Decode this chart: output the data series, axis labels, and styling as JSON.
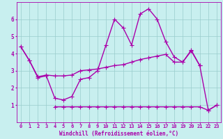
{
  "x": [
    0,
    1,
    2,
    3,
    4,
    5,
    6,
    7,
    8,
    9,
    10,
    11,
    12,
    13,
    14,
    15,
    16,
    17,
    18,
    19,
    20,
    21,
    22,
    23
  ],
  "line_spiky": [
    4.4,
    3.6,
    2.6,
    2.7,
    1.4,
    1.3,
    1.5,
    2.5,
    2.6,
    3.0,
    4.5,
    6.0,
    5.5,
    4.5,
    6.3,
    6.6,
    6.0,
    4.7,
    3.8,
    3.5,
    4.2,
    3.3,
    0.7,
    1.0
  ],
  "line_regression": [
    4.4,
    3.6,
    2.65,
    2.75,
    2.7,
    2.7,
    2.75,
    3.0,
    3.05,
    3.1,
    3.2,
    3.3,
    3.35,
    3.5,
    3.65,
    3.75,
    3.85,
    3.95,
    3.5,
    3.5,
    4.15,
    3.3,
    null,
    null
  ],
  "line_flat": [
    null,
    null,
    null,
    null,
    0.9,
    0.9,
    0.9,
    0.9,
    0.9,
    0.9,
    0.9,
    0.9,
    0.9,
    0.9,
    0.9,
    0.9,
    0.9,
    0.9,
    0.9,
    0.9,
    0.9,
    0.9,
    0.7,
    1.0
  ],
  "bg_color": "#c8efef",
  "line_color": "#aa00aa",
  "grid_color": "#99cccc",
  "xlabel": "Windchill (Refroidissement éolien,°C)",
  "xlim": [
    -0.5,
    23.5
  ],
  "ylim": [
    0,
    7
  ],
  "yticks": [
    1,
    2,
    3,
    4,
    5,
    6
  ],
  "xticks": [
    0,
    1,
    2,
    3,
    4,
    5,
    6,
    7,
    8,
    9,
    10,
    11,
    12,
    13,
    14,
    15,
    16,
    17,
    18,
    19,
    20,
    21,
    22,
    23
  ],
  "markersize": 4,
  "linewidth": 1.0
}
